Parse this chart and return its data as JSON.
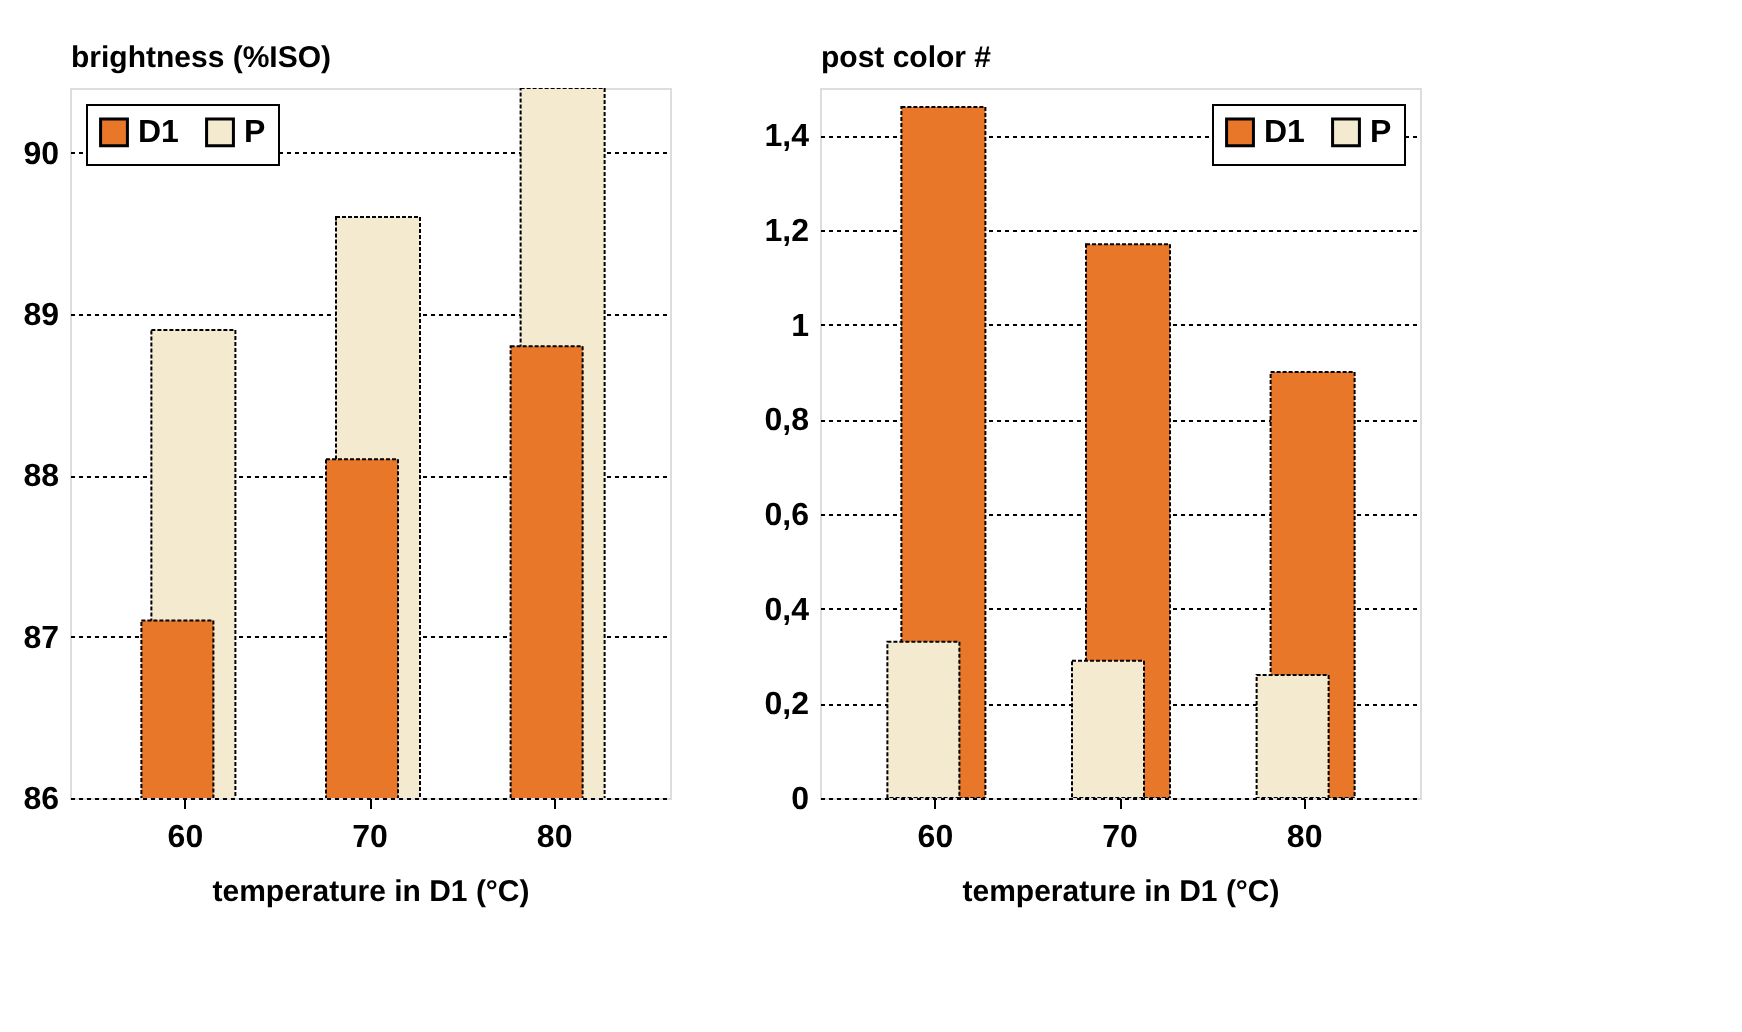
{
  "chart_data": [
    {
      "type": "bar",
      "ylabel": "brightness (%ISO)",
      "xlabel": "temperature in D1 (°C)",
      "categories": [
        "60",
        "70",
        "80"
      ],
      "series": [
        {
          "name": "D1",
          "color": "#e8772a",
          "values": [
            87.1,
            88.1,
            88.8
          ]
        },
        {
          "name": "P",
          "color": "#f3ead0",
          "values": [
            88.9,
            89.6,
            90.4
          ]
        }
      ],
      "ylim": [
        86,
        90.4
      ],
      "yticks": [
        86,
        87,
        88,
        89,
        90
      ],
      "grid": "y",
      "legend": "top left"
    },
    {
      "type": "bar",
      "ylabel": "post color #",
      "xlabel": "temperature in D1 (°C)",
      "categories": [
        "60",
        "70",
        "80"
      ],
      "series": [
        {
          "name": "P",
          "color": "#f3ead0",
          "values": [
            0.33,
            0.29,
            0.26
          ]
        },
        {
          "name": "D1",
          "color": "#e8772a",
          "values": [
            1.46,
            1.17,
            0.9
          ]
        }
      ],
      "ylim": [
        0,
        1.5
      ],
      "yticks": [
        0,
        {
          "value": 0.2,
          "label": "0,2"
        },
        {
          "value": 0.4,
          "label": "0,4"
        },
        {
          "value": 0.6,
          "label": "0,6"
        },
        {
          "value": 0.8,
          "label": "0,8"
        },
        1,
        {
          "value": 1.2,
          "label": "1,2"
        },
        {
          "value": 1.4,
          "label": "1,4"
        }
      ],
      "grid": "y",
      "legend": "top right"
    }
  ]
}
